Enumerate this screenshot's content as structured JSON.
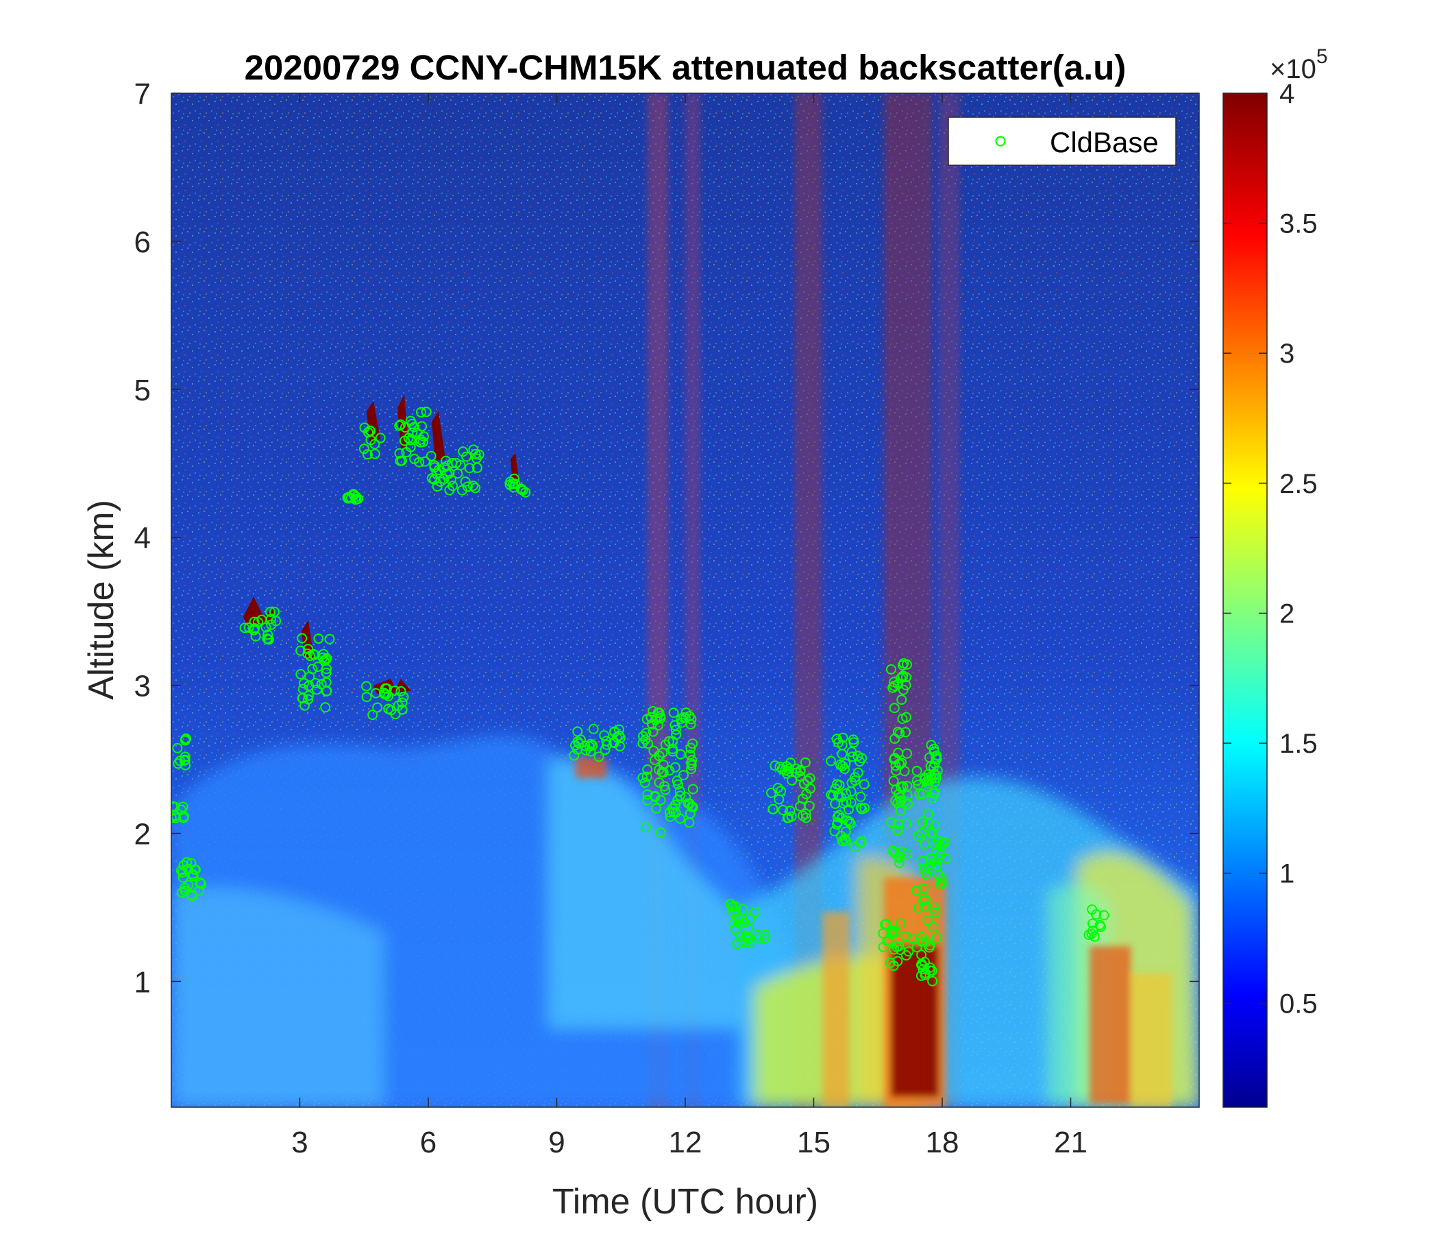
{
  "chart_data": {
    "type": "heatmap",
    "title": "20200729 CCNY-CHM15K attenuated backscatter(a.u)",
    "xlabel": "Time (UTC hour)",
    "ylabel": "Altitude (km)",
    "xlim": [
      0,
      24
    ],
    "ylim": [
      0.15,
      7
    ],
    "x_ticks": [
      3,
      6,
      9,
      12,
      15,
      18,
      21
    ],
    "x_tick_labels": [
      "3",
      "6",
      "9",
      "12",
      "15",
      "18",
      "21"
    ],
    "y_ticks": [
      1,
      2,
      3,
      4,
      5,
      6,
      7
    ],
    "y_tick_labels": [
      "1",
      "2",
      "3",
      "4",
      "5",
      "6",
      "7"
    ],
    "colorbar": {
      "range": [
        0.1,
        4
      ],
      "ticks": [
        0.5,
        1,
        1.5,
        2,
        2.5,
        3,
        3.5,
        4
      ],
      "tick_labels": [
        "0.5",
        "1",
        "1.5",
        "2",
        "2.5",
        "3",
        "3.5",
        "4"
      ],
      "multiplier_base": "×10",
      "multiplier_exp": "5",
      "colormap": "jet"
    },
    "legend": {
      "position": "top-right",
      "entries": [
        "CldBase"
      ]
    },
    "marker_color": "#00ff00",
    "cloud_base_clusters": [
      {
        "x": [
          0.0,
          0.3
        ],
        "y": [
          2.1,
          2.2
        ]
      },
      {
        "x": [
          0.05,
          0.35
        ],
        "y": [
          2.45,
          2.65
        ]
      },
      {
        "x": [
          0.2,
          0.7
        ],
        "y": [
          1.55,
          1.9
        ]
      },
      {
        "x": [
          1.7,
          2.5
        ],
        "y": [
          3.3,
          3.5
        ]
      },
      {
        "x": [
          3.0,
          3.7
        ],
        "y": [
          2.85,
          3.35
        ]
      },
      {
        "x": [
          4.5,
          5.5
        ],
        "y": [
          2.8,
          3.0
        ]
      },
      {
        "x": [
          4.1,
          4.4
        ],
        "y": [
          4.25,
          4.3
        ]
      },
      {
        "x": [
          4.5,
          4.9
        ],
        "y": [
          4.55,
          4.75
        ]
      },
      {
        "x": [
          5.3,
          6.0
        ],
        "y": [
          4.5,
          4.85
        ]
      },
      {
        "x": [
          6.0,
          7.2
        ],
        "y": [
          4.3,
          4.6
        ]
      },
      {
        "x": [
          7.9,
          8.3
        ],
        "y": [
          4.3,
          4.4
        ]
      },
      {
        "x": [
          9.4,
          10.5
        ],
        "y": [
          2.5,
          2.75
        ]
      },
      {
        "x": [
          11.0,
          12.2
        ],
        "y": [
          2.0,
          2.85
        ]
      },
      {
        "x": [
          13.0,
          13.9
        ],
        "y": [
          1.25,
          1.55
        ]
      },
      {
        "x": [
          14.0,
          15.0
        ],
        "y": [
          2.1,
          2.5
        ]
      },
      {
        "x": [
          15.4,
          16.2
        ],
        "y": [
          1.9,
          2.65
        ]
      },
      {
        "x": [
          16.6,
          17.3
        ],
        "y": [
          1.1,
          1.4
        ]
      },
      {
        "x": [
          16.8,
          17.2
        ],
        "y": [
          1.8,
          3.15
        ]
      },
      {
        "x": [
          17.4,
          17.9
        ],
        "y": [
          1.0,
          2.6
        ]
      },
      {
        "x": [
          17.9,
          18.1
        ],
        "y": [
          1.6,
          1.95
        ]
      },
      {
        "x": [
          21.4,
          21.8
        ],
        "y": [
          1.3,
          1.5
        ]
      }
    ]
  }
}
